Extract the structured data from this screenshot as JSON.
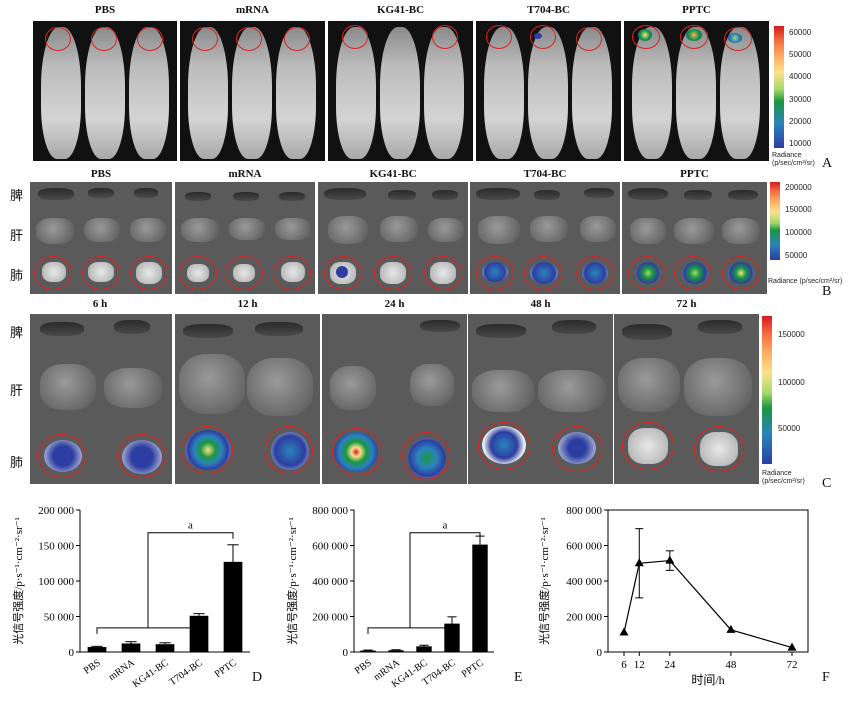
{
  "panel_labels": {
    "A": "A",
    "B": "B",
    "C": "C",
    "D": "D",
    "E": "E",
    "F": "F"
  },
  "groups": [
    "PBS",
    "mRNA",
    "KG41-BC",
    "T704-BC",
    "PPTC"
  ],
  "timepoints": [
    "6 h",
    "12 h",
    "24 h",
    "48 h",
    "72 h"
  ],
  "organs": {
    "spleen": "脾",
    "liver": "肝",
    "lung": "肺"
  },
  "colorbars": {
    "A": {
      "ticks": [
        "60000",
        "50000",
        "40000",
        "30000",
        "20000",
        "10000"
      ],
      "caption1": "Radiance",
      "caption2": "(p/sec/cm²/sr)"
    },
    "B": {
      "ticks": [
        "200000",
        "150000",
        "100000",
        "50000"
      ],
      "caption1": "Radiance",
      "caption2": "(p/sec/cm²/sr)"
    },
    "C": {
      "ticks": [
        "150000",
        "100000",
        "50000"
      ],
      "caption1": "Radiance",
      "caption2": "(p/sec/cm²/sr)"
    }
  },
  "chart_data": [
    {
      "id": "D",
      "type": "bar",
      "categories": [
        "PBS",
        "mRNA",
        "KG41-BC",
        "T704-BC",
        "PPTC"
      ],
      "values": [
        7000,
        12000,
        11000,
        51000,
        127000
      ],
      "errors": [
        1000,
        2500,
        2000,
        3000,
        24000
      ],
      "ylabel": "光信号强度/p·s⁻¹·cm⁻²·sr⁻¹",
      "ylim": [
        0,
        200000
      ],
      "yticks": [
        "0",
        "50 000",
        "100 000",
        "150 000",
        "200 000"
      ],
      "annotation": "a"
    },
    {
      "id": "E",
      "type": "bar",
      "categories": [
        "PBS",
        "mRNA",
        "KG41-BC",
        "T704-BC",
        "PPTC"
      ],
      "values": [
        8000,
        10000,
        32000,
        160000,
        605000
      ],
      "errors": [
        3000,
        3000,
        6000,
        38000,
        48000
      ],
      "ylabel": "光信号强度/p·s⁻¹·cm⁻²·sr⁻¹",
      "ylim": [
        0,
        800000
      ],
      "yticks": [
        "0",
        "200 000",
        "400 000",
        "600 000",
        "800 000"
      ],
      "annotation": "a"
    },
    {
      "id": "F",
      "type": "line",
      "x": [
        "6",
        "12",
        "24",
        "48",
        "72"
      ],
      "values": [
        110000,
        500000,
        515000,
        125000,
        25000
      ],
      "errors": [
        0,
        195000,
        55000,
        0,
        0
      ],
      "xlabel": "时间/h",
      "ylabel": "光信号强度/p·s⁻¹·cm⁻²·sr⁻¹",
      "ylim": [
        0,
        800000
      ],
      "yticks": [
        "0",
        "200 000",
        "400 000",
        "600 000",
        "800 000"
      ]
    }
  ]
}
